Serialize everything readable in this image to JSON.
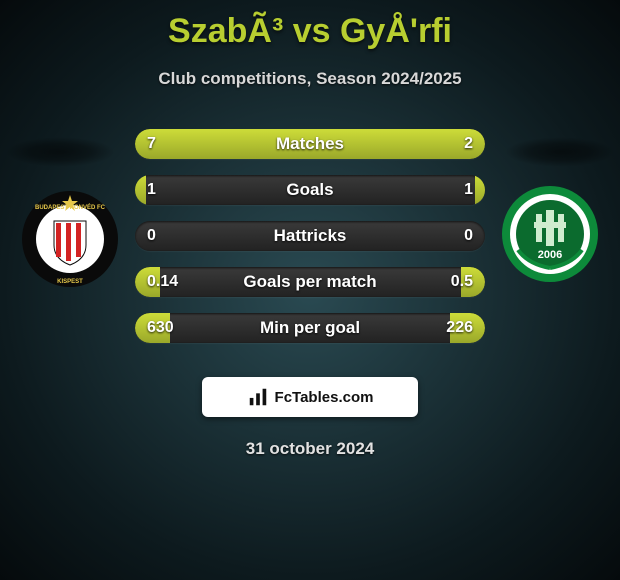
{
  "title": "SzabÃ³ vs GyÅ'rfi",
  "subtitle": "Club competitions, Season 2024/2025",
  "date": "31 october 2024",
  "brand": "FcTables.com",
  "accent_color": "#b8ce30",
  "bar_fill_color_top": "#cddc39",
  "bar_fill_color_bottom": "#9aa82a",
  "bar_track_color": "#2a2a2a",
  "stats": [
    {
      "label": "Matches",
      "left_text": "7",
      "right_text": "2",
      "left_pct": 73,
      "right_pct": 27
    },
    {
      "label": "Goals",
      "left_text": "1",
      "right_text": "1",
      "left_pct": 3,
      "right_pct": 3
    },
    {
      "label": "Hattricks",
      "left_text": "0",
      "right_text": "0",
      "left_pct": 0,
      "right_pct": 0
    },
    {
      "label": "Goals per match",
      "left_text": "0.14",
      "right_text": "0.5",
      "left_pct": 7,
      "right_pct": 7
    },
    {
      "label": "Min per goal",
      "left_text": "630",
      "right_text": "226",
      "left_pct": 10,
      "right_pct": 10
    }
  ],
  "club_left": {
    "name": "Budapest Honvéd FC",
    "ring_color": "#0a0a0a",
    "inner_bg": "#ffffff",
    "stripe_a": "#d32323",
    "stripe_b": "#ffffff",
    "band_text_color": "#e6c84a"
  },
  "club_right": {
    "name": "Paks",
    "ring_outer": "#0d8a3a",
    "ring_inner": "#ffffff",
    "core": "#0b6b2e",
    "year": "2006"
  }
}
